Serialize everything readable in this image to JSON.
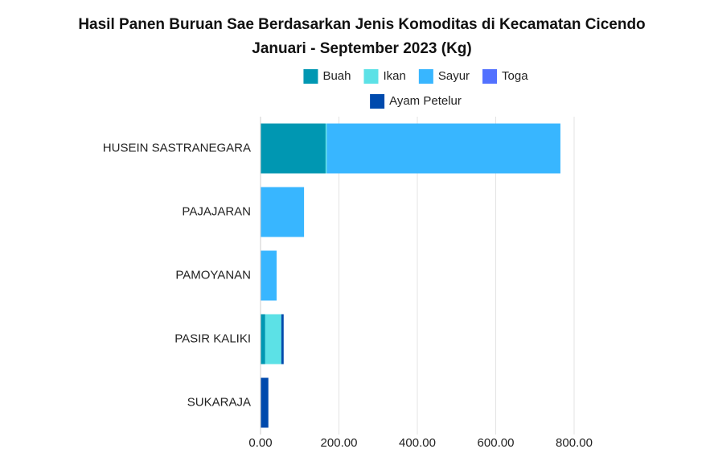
{
  "chart_data": {
    "type": "stacked-bar-horizontal",
    "title": [
      "Hasil Panen Buruan Sae Berdasarkan Jenis Komoditas di Kecamatan Cicendo",
      "Januari - September 2023 (Kg)"
    ],
    "categories": [
      "HUSEIN SASTRANEGARA",
      "PAJAJARAN",
      "PAMOYANAN",
      "PASIR KALIKI",
      "SUKARAJA"
    ],
    "series": [
      {
        "name": "Buah",
        "color": "#0097b2",
        "values": [
          166,
          0,
          0,
          12,
          0
        ]
      },
      {
        "name": "Ikan",
        "color": "#5ce1e6",
        "values": [
          3,
          0,
          0,
          41,
          0
        ]
      },
      {
        "name": "Sayur",
        "color": "#38b6ff",
        "values": [
          596,
          111,
          41,
          0,
          0
        ]
      },
      {
        "name": "Toga",
        "color": "#5271ff",
        "values": [
          0,
          0,
          0,
          0,
          0
        ]
      },
      {
        "name": "Ayam Petelur",
        "color": "#004aad",
        "values": [
          0,
          0,
          0,
          6,
          20
        ]
      }
    ],
    "xlim": [
      0,
      800
    ],
    "xticks": [
      {
        "value": 0,
        "label": "0.00"
      },
      {
        "value": 200,
        "label": "200.00"
      },
      {
        "value": 400,
        "label": "400.00"
      },
      {
        "value": 600,
        "label": "600.00"
      },
      {
        "value": 800,
        "label": "800.00"
      }
    ],
    "grid": true
  }
}
